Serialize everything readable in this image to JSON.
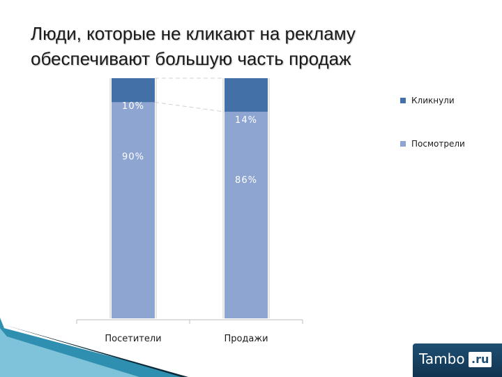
{
  "slide": {
    "title_line1": "Люди, которые не кликают на рекламу",
    "title_line2": "обеспечивают большую часть продаж"
  },
  "chart_data": {
    "type": "bar",
    "stacked": true,
    "percent": true,
    "categories": [
      "Посетители",
      "Продажи"
    ],
    "series": [
      {
        "name": "Посмотрели",
        "values": [
          90,
          86
        ],
        "labels": [
          "90%",
          "86%"
        ],
        "color": "#8ea5d2"
      },
      {
        "name": "Кликнули",
        "values": [
          10,
          14
        ],
        "labels": [
          "10%",
          "14%"
        ],
        "color": "#4470a8"
      }
    ],
    "ylim": [
      0,
      100
    ],
    "legend": "right",
    "grid": false
  },
  "logo": {
    "text": "Tambo",
    "suffix": ".ru"
  },
  "colors": {
    "dark_blue": "#4470a8",
    "light_blue": "#8ea5d2",
    "decor_teal": "#2f8fb0"
  }
}
